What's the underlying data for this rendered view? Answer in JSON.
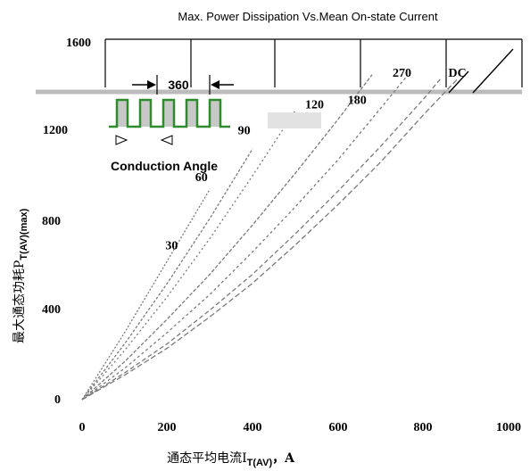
{
  "chart_data": {
    "type": "line",
    "title": "Max. Power Dissipation Vs.Mean On-state Current",
    "xlabel_main": "通态平均电流I",
    "xlabel_sub": "T(AV)",
    "xlabel_suffix": "，A",
    "ylabel_main": "最大通态功耗P",
    "ylabel_sub": "T(AV)(max)",
    "xlim": [
      0,
      1000
    ],
    "ylim": [
      0,
      1600
    ],
    "xticks": [
      "0",
      "200",
      "400",
      "600",
      "800",
      "1000"
    ],
    "yticks": [
      "0",
      "400",
      "800",
      "1200",
      "1600"
    ],
    "series": [
      {
        "name": "30",
        "x": [
          0,
          100,
          200,
          300
        ],
        "y": [
          0,
          300,
          620,
          940
        ]
      },
      {
        "name": "60",
        "x": [
          0,
          100,
          200,
          300,
          400
        ],
        "y": [
          0,
          250,
          520,
          810,
          1120
        ]
      },
      {
        "name": "90",
        "x": [
          0,
          100,
          200,
          300,
          400,
          500
        ],
        "y": [
          0,
          220,
          460,
          720,
          1000,
          1290
        ]
      },
      {
        "name": "120",
        "x": [
          0,
          100,
          200,
          300,
          400,
          500,
          600,
          680
        ],
        "y": [
          0,
          170,
          360,
          560,
          780,
          1010,
          1250,
          1450
        ]
      },
      {
        "name": "180",
        "x": [
          0,
          100,
          200,
          300,
          400,
          500,
          600,
          700,
          760
        ],
        "y": [
          0,
          140,
          300,
          470,
          660,
          860,
          1070,
          1300,
          1440
        ]
      },
      {
        "name": "270",
        "x": [
          0,
          100,
          200,
          300,
          400,
          500,
          600,
          700,
          800,
          840
        ],
        "y": [
          0,
          120,
          250,
          400,
          560,
          740,
          930,
          1130,
          1340,
          1430
        ]
      },
      {
        "name": "DC",
        "x": [
          0,
          100,
          200,
          300,
          400,
          500,
          600,
          700,
          800,
          880
        ],
        "y": [
          0,
          110,
          230,
          370,
          520,
          690,
          870,
          1060,
          1270,
          1430
        ]
      }
    ],
    "curve_labels": [
      {
        "text": "30",
        "x": 210,
        "y": 670
      },
      {
        "text": "60",
        "x": 280,
        "y": 975
      },
      {
        "text": "90",
        "x": 380,
        "y": 1185
      },
      {
        "text": "120",
        "x": 545,
        "y": 1300
      },
      {
        "text": "180",
        "x": 645,
        "y": 1320
      },
      {
        "text": "270",
        "x": 750,
        "y": 1440
      },
      {
        "text": "DC",
        "x": 880,
        "y": 1440
      }
    ],
    "inset": {
      "angle": "360",
      "caption": "Conduction Angle"
    },
    "colors": {
      "curve": "#7a7a7a",
      "pulse": "#2e8b2e",
      "pulse_fill": "#c8c8c8"
    },
    "grid": false
  }
}
